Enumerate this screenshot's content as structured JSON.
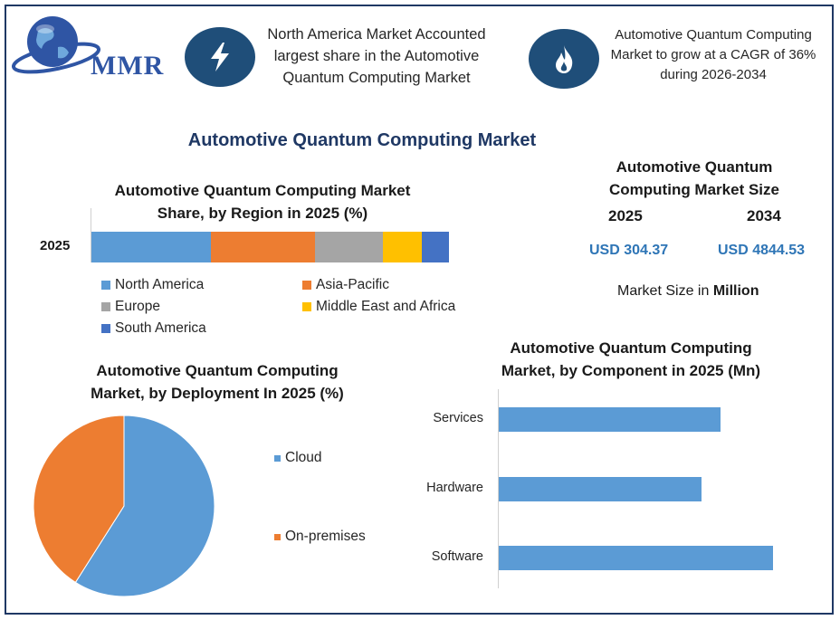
{
  "logo": {
    "text": "MMR"
  },
  "header": {
    "box1_text": "North America Market Accounted largest share in the Automotive Quantum Computing Market",
    "box2_text": "Automotive Quantum Computing Market to grow at a CAGR of 36% during 2026-2034",
    "icon1": "lightning-icon",
    "icon2": "flame-icon"
  },
  "main_title": "Automotive Quantum Computing Market",
  "market_size": {
    "title_line1": "Automotive Quantum",
    "title_line2": "Computing Market Size",
    "year1": "2025",
    "year2": "2034",
    "value1": "USD 304.37",
    "value2": "USD 4844.53",
    "note_prefix": "Market Size in ",
    "note_bold": "Million"
  },
  "colors": {
    "north_america": "#5b9bd5",
    "asia_pacific": "#ed7d31",
    "europe": "#a5a5a5",
    "mea": "#ffc000",
    "south_america": "#4472c4",
    "accent": "#1f4e79"
  },
  "chart_data": [
    {
      "type": "bar",
      "orientation": "horizontal-stacked",
      "title_line1": "Automotive Quantum Computing Market",
      "title_line2": "Share, by Region in 2025 (%)",
      "categories": [
        "2025"
      ],
      "series": [
        {
          "name": "North America",
          "values": [
            33.5
          ]
        },
        {
          "name": "Asia-Pacific",
          "values": [
            29
          ]
        },
        {
          "name": "Europe",
          "values": [
            19
          ]
        },
        {
          "name": "Middle East and Africa",
          "values": [
            11
          ]
        },
        {
          "name": "South America",
          "values": [
            7.5
          ]
        }
      ],
      "legend": "bottom"
    },
    {
      "type": "pie",
      "title_line1": "Automotive Quantum Computing",
      "title_line2": "Market, by Deployment In 2025 (%)",
      "labels": [
        "Cloud",
        "On-premises"
      ],
      "values": [
        59,
        41
      ],
      "legend": "right"
    },
    {
      "type": "bar",
      "orientation": "horizontal",
      "title_line1": "Automotive Quantum Computing",
      "title_line2": "Market, by Component in 2025 (Mn)",
      "categories": [
        "Services",
        "Hardware",
        "Software"
      ],
      "values": [
        81,
        74,
        100
      ]
    }
  ]
}
